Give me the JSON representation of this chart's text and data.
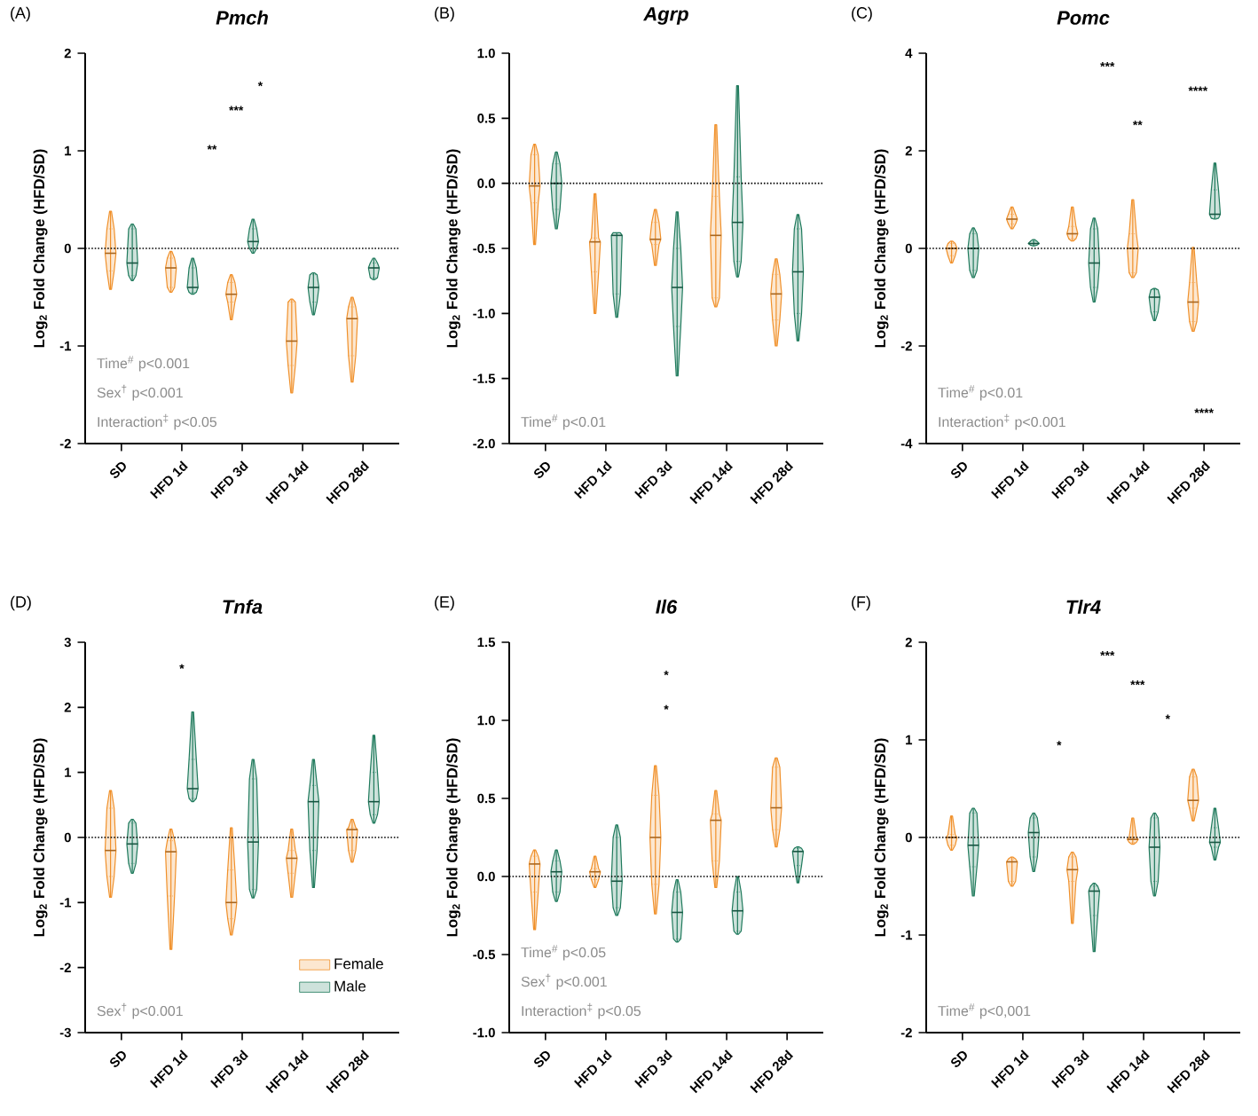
{
  "chart_data": [
    {
      "type": "box",
      "title": "Pmch",
      "ylabel": "Log$_{2}$ Fold Change (HFD/SD)",
      "categories": [
        "SD",
        "HFD 1d",
        "HFD 3d",
        "HFD 14d",
        "HFD 28d"
      ],
      "ylim": [
        -2,
        2
      ],
      "yticks": [
        -2,
        -1,
        0,
        1,
        2
      ],
      "series": [
        {
          "color": "#f0902a",
          "boxes": [
            {
              "low": -0.42,
              "q1": -0.23,
              "median": -0.05,
              "q3": 0.2,
              "high": 0.38
            },
            {
              "low": -0.45,
              "q1": -0.4,
              "median": -0.2,
              "q3": -0.1,
              "high": -0.03
            },
            {
              "low": -0.73,
              "q1": -0.55,
              "median": -0.47,
              "q3": -0.35,
              "high": -0.27
            },
            {
              "low": -1.48,
              "q1": -1.2,
              "median": -0.95,
              "q3": -0.55,
              "high": -0.52
            },
            {
              "low": -1.37,
              "q1": -1.1,
              "median": -0.72,
              "q3": -0.6,
              "high": -0.5
            }
          ]
        },
        {
          "color": "#1f7a5c",
          "boxes": [
            {
              "low": -0.33,
              "q1": -0.28,
              "median": -0.15,
              "q3": 0.2,
              "high": 0.25
            },
            {
              "low": -0.47,
              "q1": -0.45,
              "median": -0.4,
              "q3": -0.2,
              "high": -0.1
            },
            {
              "low": -0.05,
              "q1": 0,
              "median": 0.07,
              "q3": 0.2,
              "high": 0.3
            },
            {
              "low": -0.68,
              "q1": -0.55,
              "median": -0.4,
              "q3": -0.27,
              "high": -0.25
            },
            {
              "low": -0.32,
              "q1": -0.3,
              "median": -0.2,
              "q3": -0.15,
              "high": -0.1
            }
          ]
        }
      ],
      "ref_lines": [
        {
          "axis": "y",
          "value": 0,
          "line_style": "dotted"
        }
      ],
      "annotations": [
        "(A)",
        "Time$^{#}$ p<0.001",
        "Sex$^{†}$ p<0.001",
        "Interaction$^{‡}$ p<0.05",
        "*",
        "***",
        "**"
      ]
    },
    {
      "type": "box",
      "title": "Agrp",
      "ylabel": "Log$_{2}$ Fold Change (HFD/SD)",
      "categories": [
        "SD",
        "HFD 1d",
        "HFD 3d",
        "HFD 14d",
        "HFD 28d"
      ],
      "ylim": [
        -2,
        1
      ],
      "yticks": [
        {
          "value": -2,
          "label": "-2.0"
        },
        -1.5,
        {
          "value": -1,
          "label": "-1.0"
        },
        -0.5,
        {
          "value": 0,
          "label": "0.0"
        },
        0.5,
        {
          "value": 1,
          "label": "1.0"
        }
      ],
      "series": [
        {
          "color": "#f0902a",
          "boxes": [
            {
              "low": -0.47,
              "q1": -0.15,
              "median": -0.02,
              "q3": 0.22,
              "high": 0.3
            },
            {
              "low": -1.0,
              "q1": -0.68,
              "median": -0.45,
              "q3": -0.42,
              "high": -0.08
            },
            {
              "low": -0.63,
              "q1": -0.47,
              "median": -0.43,
              "q3": -0.3,
              "high": -0.2
            },
            {
              "low": -0.95,
              "q1": -0.88,
              "median": -0.4,
              "q3": -0.1,
              "high": 0.45
            },
            {
              "low": -1.25,
              "q1": -1.05,
              "median": -0.85,
              "q3": -0.7,
              "high": -0.58
            }
          ]
        },
        {
          "color": "#1f7a5c",
          "boxes": [
            {
              "low": -0.35,
              "q1": -0.2,
              "median": 0.0,
              "q3": 0.15,
              "high": 0.24
            },
            {
              "low": -1.03,
              "q1": -0.85,
              "median": -0.4,
              "q3": -0.38,
              "high": -0.38
            },
            {
              "low": -1.48,
              "q1": -1.1,
              "median": -0.8,
              "q3": -0.5,
              "high": -0.22
            },
            {
              "low": -0.72,
              "q1": -0.6,
              "median": -0.3,
              "q3": 0.05,
              "high": 0.75
            },
            {
              "low": -1.21,
              "q1": -1.0,
              "median": -0.68,
              "q3": -0.35,
              "high": -0.24
            }
          ]
        }
      ],
      "ref_lines": [
        {
          "axis": "y",
          "value": 0,
          "line_style": "dotted"
        }
      ],
      "annotations": [
        "(B)",
        "Time$^{#}$ p<0.01"
      ]
    },
    {
      "type": "box",
      "title": "Pomc",
      "ylabel": "Log$_{2}$ Fold Change (HFD/SD)",
      "categories": [
        "SD",
        "HFD 1d",
        "HFD 3d",
        "HFD 14d",
        "HFD 28d"
      ],
      "ylim": [
        -4,
        4
      ],
      "yticks": [
        -4,
        -2,
        0,
        2,
        4
      ],
      "series": [
        {
          "color": "#f0902a",
          "boxes": [
            {
              "low": -0.3,
              "q1": -0.15,
              "median": 0,
              "q3": 0.1,
              "high": 0.15
            },
            {
              "low": 0.4,
              "q1": 0.5,
              "median": 0.6,
              "q3": 0.7,
              "high": 0.85
            },
            {
              "low": 0.15,
              "q1": 0.2,
              "median": 0.3,
              "q3": 0.45,
              "high": 0.85
            },
            {
              "low": -0.6,
              "q1": -0.5,
              "median": 0,
              "q3": 0.3,
              "high": 1.0
            },
            {
              "low": -1.7,
              "q1": -1.5,
              "median": -1.1,
              "q3": -0.7,
              "high": 0.02
            }
          ]
        },
        {
          "color": "#1f7a5c",
          "boxes": [
            {
              "low": -0.6,
              "q1": -0.45,
              "median": 0,
              "q3": 0.3,
              "high": 0.42
            },
            {
              "low": 0.05,
              "q1": 0.07,
              "median": 0.1,
              "q3": 0.14,
              "high": 0.18
            },
            {
              "low": -1.1,
              "q1": -0.8,
              "median": -0.3,
              "q3": 0.4,
              "high": 0.62
            },
            {
              "low": -1.48,
              "q1": -1.3,
              "median": -1.0,
              "q3": -0.85,
              "high": -0.82
            },
            {
              "low": 0.6,
              "q1": 0.62,
              "median": 0.7,
              "q3": 1.2,
              "high": 1.75
            }
          ]
        }
      ],
      "ref_lines": [
        {
          "axis": "y",
          "value": 0,
          "line_style": "dotted"
        }
      ],
      "annotations": [
        "(C)",
        "Time$^{#}$ p<0.01",
        "Interaction$^{‡}$ p<0.001",
        "***",
        "****",
        "**",
        "****"
      ]
    },
    {
      "type": "box",
      "title": "Tnfa",
      "ylabel": "Log$_{2}$ Fold Change (HFD/SD)",
      "categories": [
        "SD",
        "HFD 1d",
        "HFD 3d",
        "HFD 14d",
        "HFD 28d"
      ],
      "ylim": [
        -3,
        3
      ],
      "yticks": [
        -3,
        -2,
        -1,
        0,
        1,
        2,
        3
      ],
      "legend": "bottom right",
      "series": [
        {
          "name": "Female",
          "color": "#f0902a",
          "boxes": [
            {
              "low": -0.92,
              "q1": -0.6,
              "median": -0.2,
              "q3": 0.45,
              "high": 0.72
            },
            {
              "low": -1.72,
              "q1": -0.9,
              "median": -0.22,
              "q3": -0.05,
              "high": 0.13
            },
            {
              "low": -1.5,
              "q1": -1.25,
              "median": -1.0,
              "q3": -0.5,
              "high": 0.15
            },
            {
              "low": -0.92,
              "q1": -0.55,
              "median": -0.32,
              "q3": -0.2,
              "high": 0.13
            },
            {
              "low": -0.38,
              "q1": -0.2,
              "median": 0.12,
              "q3": 0.15,
              "high": 0.28
            }
          ]
        },
        {
          "name": "Male",
          "color": "#1f7a5c",
          "boxes": [
            {
              "low": -0.55,
              "q1": -0.4,
              "median": -0.1,
              "q3": 0.22,
              "high": 0.28
            },
            {
              "low": 0.55,
              "q1": 0.6,
              "median": 0.75,
              "q3": 1.2,
              "high": 1.93
            },
            {
              "low": -0.93,
              "q1": -0.8,
              "median": -0.07,
              "q3": 0.9,
              "high": 1.2
            },
            {
              "low": -0.77,
              "q1": -0.2,
              "median": 0.55,
              "q3": 0.8,
              "high": 1.2
            },
            {
              "low": 0.22,
              "q1": 0.35,
              "median": 0.55,
              "q3": 1.0,
              "high": 1.57
            }
          ]
        }
      ],
      "ref_lines": [
        {
          "axis": "y",
          "value": 0,
          "line_style": "dotted"
        }
      ],
      "annotations": [
        "(D)",
        "Sex$^{†}$ p<0.001",
        "*"
      ]
    },
    {
      "type": "box",
      "title": "Il6",
      "ylabel": "Log$_{2}$ Fold Change (HFD/SD)",
      "categories": [
        "SD",
        "HFD 1d",
        "HFD 3d",
        "HFD 14d",
        "HFD 28d"
      ],
      "ylim": [
        -1,
        1.5
      ],
      "yticks": [
        {
          "value": -1,
          "label": "-1.0"
        },
        -0.5,
        {
          "value": 0,
          "label": "0.0"
        },
        0.5,
        {
          "value": 1,
          "label": "1.0"
        },
        1.5
      ],
      "series": [
        {
          "color": "#f0902a",
          "boxes": [
            {
              "low": -0.34,
              "q1": -0.1,
              "median": 0.08,
              "q3": 0.13,
              "high": 0.17
            },
            {
              "low": -0.07,
              "q1": -0.02,
              "median": 0.03,
              "q3": 0.05,
              "high": 0.13
            },
            {
              "low": -0.24,
              "q1": -0.05,
              "median": 0.25,
              "q3": 0.52,
              "high": 0.71
            },
            {
              "low": -0.07,
              "q1": 0.1,
              "median": 0.36,
              "q3": 0.4,
              "high": 0.55
            },
            {
              "low": 0.19,
              "q1": 0.3,
              "median": 0.44,
              "q3": 0.7,
              "high": 0.76
            }
          ]
        },
        {
          "color": "#1f7a5c",
          "boxes": [
            {
              "low": -0.16,
              "q1": -0.1,
              "median": 0.03,
              "q3": 0.1,
              "high": 0.17
            },
            {
              "low": -0.25,
              "q1": -0.2,
              "median": -0.03,
              "q3": 0.25,
              "high": 0.33
            },
            {
              "low": -0.42,
              "q1": -0.4,
              "median": -0.23,
              "q3": -0.1,
              "high": -0.02
            },
            {
              "low": -0.37,
              "q1": -0.35,
              "median": -0.22,
              "q3": -0.1,
              "high": 0.0
            },
            {
              "low": -0.04,
              "q1": 0.07,
              "median": 0.16,
              "q3": 0.18,
              "high": 0.19
            }
          ]
        }
      ],
      "ref_lines": [
        {
          "axis": "y",
          "value": 0,
          "line_style": "dotted"
        }
      ],
      "annotations": [
        "(E)",
        "Time$^{#}$ p<0.05",
        "Sex$^{†}$ p<0.001",
        "Interaction$^{‡}$ p<0.05",
        "*",
        "*"
      ]
    },
    {
      "type": "box",
      "title": "Tlr4",
      "ylabel": "Log$_{2}$ Fold Change (HFD/SD)",
      "categories": [
        "SD",
        "HFD 1d",
        "HFD 3d",
        "HFD 14d",
        "HFD 28d"
      ],
      "ylim": [
        -2,
        2
      ],
      "yticks": [
        -2,
        -1,
        0,
        1,
        2
      ],
      "series": [
        {
          "color": "#f0902a",
          "boxes": [
            {
              "low": -0.13,
              "q1": -0.08,
              "median": 0,
              "q3": 0.03,
              "high": 0.22
            },
            {
              "low": -0.5,
              "q1": -0.45,
              "median": -0.25,
              "q3": -0.22,
              "high": -0.2
            },
            {
              "low": -0.88,
              "q1": -0.45,
              "median": -0.33,
              "q3": -0.2,
              "high": -0.15
            },
            {
              "low": -0.07,
              "q1": -0.05,
              "median": -0.02,
              "q3": 0.0,
              "high": 0.2
            },
            {
              "low": 0.17,
              "q1": 0.3,
              "median": 0.38,
              "q3": 0.62,
              "high": 0.7
            }
          ]
        },
        {
          "color": "#1f7a5c",
          "boxes": [
            {
              "low": -0.6,
              "q1": -0.3,
              "median": -0.08,
              "q3": 0.25,
              "high": 0.3
            },
            {
              "low": -0.35,
              "q1": -0.2,
              "median": 0.05,
              "q3": 0.2,
              "high": 0.25
            },
            {
              "low": -1.17,
              "q1": -0.8,
              "median": -0.55,
              "q3": -0.5,
              "high": -0.47
            },
            {
              "low": -0.6,
              "q1": -0.45,
              "median": -0.1,
              "q3": 0.2,
              "high": 0.25
            },
            {
              "low": -0.23,
              "q1": -0.1,
              "median": -0.05,
              "q3": 0.1,
              "high": 0.3
            }
          ]
        }
      ],
      "ref_lines": [
        {
          "axis": "y",
          "value": 0,
          "line_style": "dotted"
        }
      ],
      "annotations": [
        "(F)",
        "Time$^{#}$ p<0,001",
        "***",
        "***",
        "*",
        "*"
      ]
    }
  ]
}
